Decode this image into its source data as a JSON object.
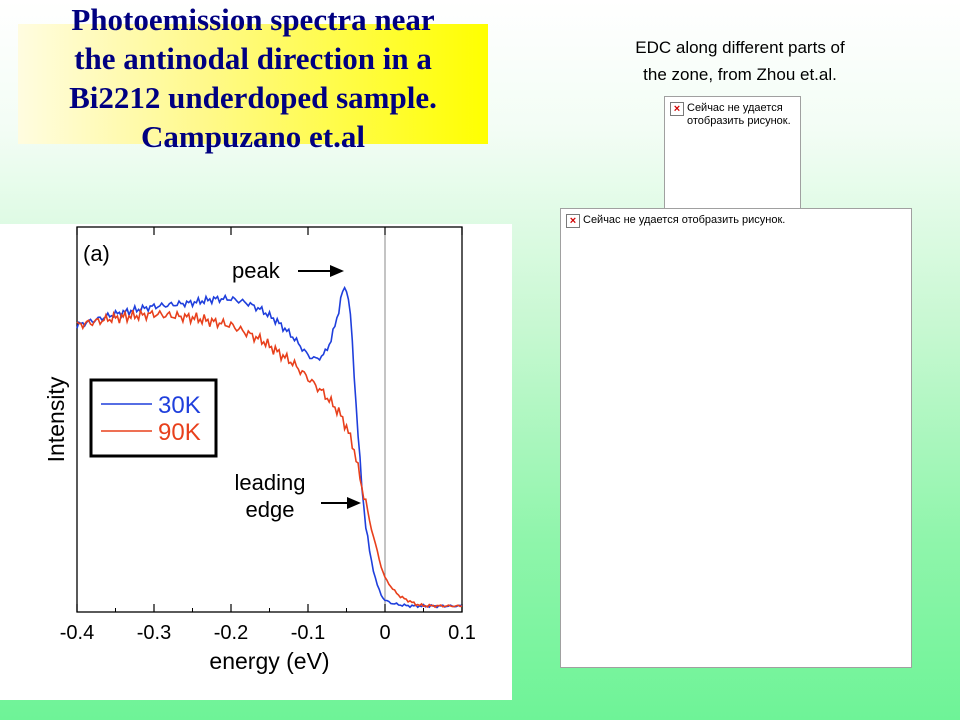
{
  "slide": {
    "title": "Photoemission spectra near\nthe antinodal direction in a\nBi2212 underdoped sample.\nCampuzano et.al",
    "edc_caption": "EDC along different parts of\n   the zone, from Zhou  et.al.",
    "placeholders": [
      {
        "text": "Сейчас не удается\nотобразить рисунок."
      },
      {
        "text": "Сейчас не удается отобразить рисунок."
      }
    ]
  },
  "colors": {
    "title_text": "#000080",
    "series_30K": "#1f3fdc",
    "series_90K": "#e8401c"
  },
  "chart_data": {
    "type": "line",
    "panel_label": "(a)",
    "xlabel": "energy (eV)",
    "ylabel": "Intensity",
    "xlim": [
      -0.4,
      0.1
    ],
    "xticks": [
      "-0.4",
      "-0.3",
      "-0.2",
      "-0.1",
      "0",
      "0.1"
    ],
    "xtick_values": [
      -0.4,
      -0.3,
      -0.2,
      -0.1,
      0,
      0.1
    ],
    "ylim": [
      0,
      100
    ],
    "vline_at": 0,
    "legend_position": "left",
    "series": [
      {
        "name": "30K",
        "x": [
          -0.4,
          -0.35,
          -0.3,
          -0.25,
          -0.22,
          -0.2,
          -0.18,
          -0.16,
          -0.14,
          -0.12,
          -0.1,
          -0.09,
          -0.08,
          -0.07,
          -0.06,
          -0.055,
          -0.05,
          -0.045,
          -0.04,
          -0.035,
          -0.03,
          -0.025,
          -0.02,
          -0.015,
          -0.01,
          -0.005,
          0,
          0.01,
          0.02,
          0.03,
          0.05,
          0.1
        ],
        "y": [
          75,
          78,
          80,
          81,
          82,
          82,
          81,
          79,
          76,
          72,
          67,
          66,
          67,
          71,
          79,
          84,
          85,
          78,
          62,
          46,
          32,
          22,
          15,
          10,
          6,
          3.5,
          2,
          1.2,
          0.8,
          0.6,
          0.5,
          0.5
        ]
      },
      {
        "name": "90K",
        "x": [
          -0.4,
          -0.35,
          -0.3,
          -0.25,
          -0.2,
          -0.18,
          -0.16,
          -0.14,
          -0.12,
          -0.1,
          -0.08,
          -0.06,
          -0.05,
          -0.04,
          -0.035,
          -0.03,
          -0.025,
          -0.02,
          -0.015,
          -0.01,
          -0.005,
          0,
          0.01,
          0.02,
          0.03,
          0.04,
          0.05,
          0.1
        ],
        "y": [
          75,
          77,
          78,
          77,
          75,
          73,
          71,
          68,
          65,
          61,
          57,
          52,
          48,
          42,
          37,
          32,
          28,
          23,
          19,
          15,
          11,
          8,
          5,
          3,
          2,
          1,
          0.6,
          0.5
        ]
      }
    ],
    "annotations": [
      {
        "text": "peak",
        "x": -0.05,
        "y": 85
      },
      {
        "text": "leading\nedge",
        "x": -0.025,
        "y": 28
      }
    ]
  }
}
